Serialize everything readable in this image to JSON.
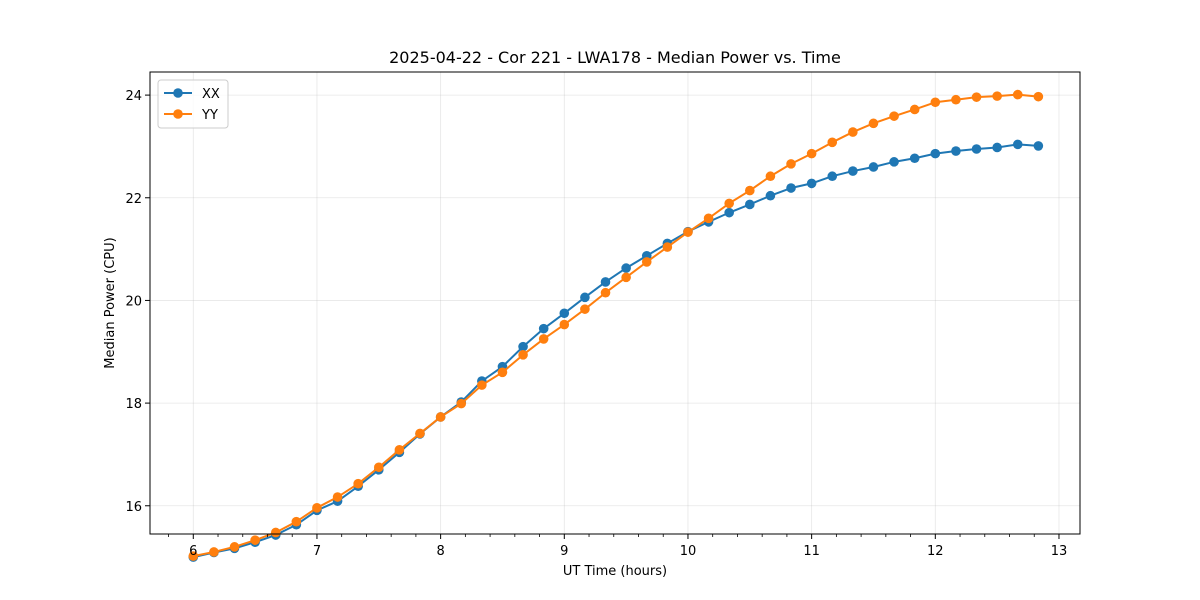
{
  "chart_data": {
    "type": "line",
    "title": "2025-04-22 - Cor 221 - LWA178 - Median Power vs. Time",
    "xlabel": "UT Time (hours)",
    "ylabel": "Median Power (CPU)",
    "xlim": [
      5.65,
      13.17
    ],
    "ylim": [
      15.45,
      24.45
    ],
    "xticks": [
      6,
      7,
      8,
      9,
      10,
      11,
      12,
      13
    ],
    "yticks": [
      16,
      18,
      20,
      22,
      24
    ],
    "x_minor_step": 0.2,
    "grid": true,
    "legend_position": "upper-left",
    "x": [
      6.0,
      6.1667,
      6.3333,
      6.5,
      6.6667,
      6.8333,
      7.0,
      7.1667,
      7.3333,
      7.5,
      7.6667,
      7.8333,
      8.0,
      8.1667,
      8.3333,
      8.5,
      8.6667,
      8.8333,
      9.0,
      9.1667,
      9.3333,
      9.5,
      9.6667,
      9.8333,
      10.0,
      10.1667,
      10.3333,
      10.5,
      10.6667,
      10.8333,
      11.0,
      11.1667,
      11.3333,
      11.5,
      11.6667,
      11.8333,
      12.0,
      12.1667,
      12.3333,
      12.5,
      12.6667,
      12.8333
    ],
    "series": [
      {
        "name": "XX",
        "color": "#1f77b4",
        "values": [
          15.0,
          15.09,
          15.17,
          15.29,
          15.43,
          15.63,
          15.91,
          16.09,
          16.38,
          16.7,
          17.04,
          17.4,
          17.73,
          18.02,
          18.43,
          18.71,
          19.1,
          19.45,
          19.75,
          20.06,
          20.36,
          20.63,
          20.87,
          21.11,
          21.34,
          21.53,
          21.71,
          21.87,
          22.04,
          22.19,
          22.28,
          22.42,
          22.52,
          22.6,
          22.7,
          22.77,
          22.86,
          22.91,
          22.95,
          22.98,
          23.04,
          23.01
        ]
      },
      {
        "name": "YY",
        "color": "#ff7f0e",
        "values": [
          15.02,
          15.1,
          15.2,
          15.33,
          15.48,
          15.69,
          15.96,
          16.17,
          16.43,
          16.75,
          17.09,
          17.41,
          17.73,
          17.99,
          18.35,
          18.6,
          18.94,
          19.25,
          19.53,
          19.83,
          20.15,
          20.45,
          20.75,
          21.04,
          21.33,
          21.6,
          21.89,
          22.14,
          22.42,
          22.66,
          22.86,
          23.08,
          23.28,
          23.45,
          23.59,
          23.72,
          23.86,
          23.91,
          23.96,
          23.98,
          24.01,
          23.97
        ]
      }
    ]
  }
}
